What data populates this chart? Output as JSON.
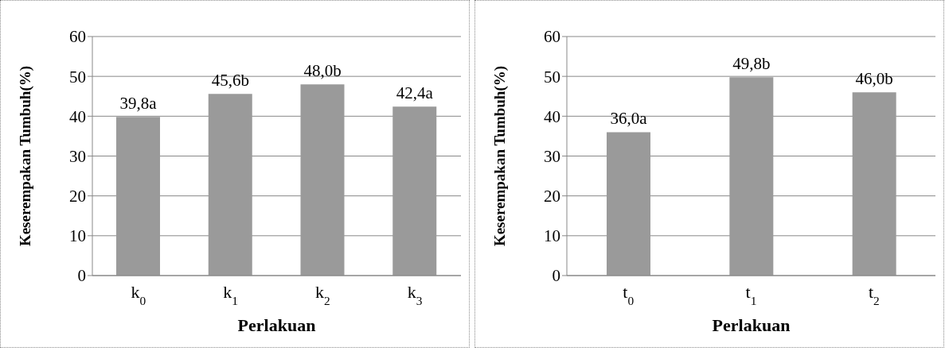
{
  "chart_data": [
    {
      "type": "bar",
      "categories": [
        "k$_{0}$",
        "k$_{1}$",
        "k$_{2}$",
        "k$_{3}$"
      ],
      "values": [
        39.8,
        45.6,
        48.0,
        42.4
      ],
      "value_labels": [
        "39,8a",
        "45,6b",
        "48,0b",
        "42,4a"
      ],
      "color": "#9a9a9a",
      "ylim": [
        0,
        60
      ],
      "yticks": [
        0,
        10,
        20,
        30,
        40,
        50,
        60
      ],
      "grid": "y",
      "xlabel": "Perlakuan",
      "ylabel": "Keserempakan Tumbuh(%)",
      "legend": false
    },
    {
      "type": "bar",
      "categories": [
        "t$_{0}$",
        "t$_{1}$",
        "t$_{2}$"
      ],
      "values": [
        36.0,
        49.8,
        46.0
      ],
      "value_labels": [
        "36,0a",
        "49,8b",
        "46,0b"
      ],
      "color": "#9a9a9a",
      "ylim": [
        0,
        60
      ],
      "yticks": [
        0,
        10,
        20,
        30,
        40,
        50,
        60
      ],
      "grid": "y",
      "xlabel": "Perlakuan",
      "ylabel": "Keserempakan Tumbuh(%)",
      "legend": false
    }
  ]
}
